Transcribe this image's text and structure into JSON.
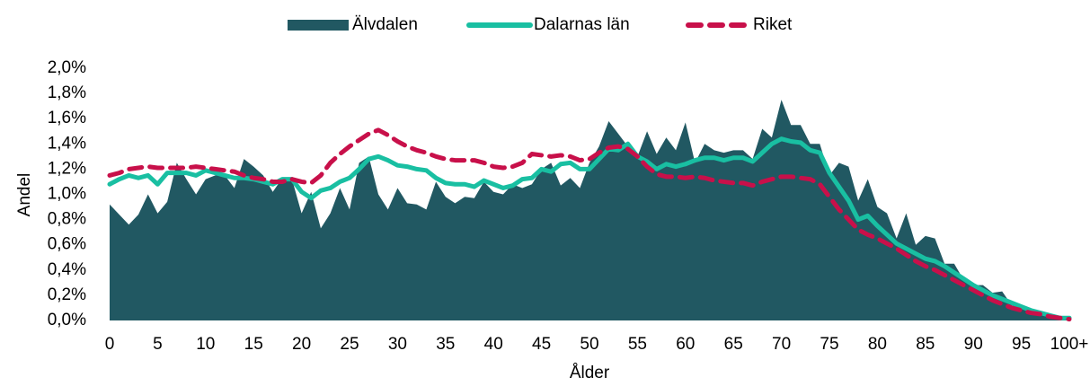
{
  "chart_data": {
    "type": "area_line",
    "x_label": "Ålder",
    "y_label": "Andel",
    "legend": "top",
    "categories": [
      "0",
      null,
      null,
      null,
      null,
      "5",
      null,
      null,
      null,
      null,
      "10",
      null,
      null,
      null,
      null,
      "15",
      null,
      null,
      null,
      null,
      "20",
      null,
      null,
      null,
      null,
      "25",
      null,
      null,
      null,
      null,
      "30",
      null,
      null,
      null,
      null,
      "35",
      null,
      null,
      null,
      null,
      "40",
      null,
      null,
      null,
      null,
      "45",
      null,
      null,
      null,
      null,
      "50",
      null,
      null,
      null,
      null,
      "55",
      null,
      null,
      null,
      null,
      "60",
      null,
      null,
      null,
      null,
      "65",
      null,
      null,
      null,
      null,
      "70",
      null,
      null,
      null,
      null,
      "75",
      null,
      null,
      null,
      null,
      "80",
      null,
      null,
      null,
      null,
      "85",
      null,
      null,
      null,
      null,
      "90",
      null,
      null,
      null,
      null,
      "95",
      null,
      null,
      null,
      null,
      "100+"
    ],
    "ylim": [
      0,
      2.0
    ],
    "yticks": [
      {
        "value": 0,
        "label": "0,0%"
      },
      {
        "value": 0.2,
        "label": "0,2%"
      },
      {
        "value": 0.4,
        "label": "0,4%"
      },
      {
        "value": 0.6,
        "label": "0,6%"
      },
      {
        "value": 0.8,
        "label": "0,8%"
      },
      {
        "value": 1.0,
        "label": "1,0%"
      },
      {
        "value": 1.2,
        "label": "1,2%"
      },
      {
        "value": 1.4,
        "label": "1,4%"
      },
      {
        "value": 1.6,
        "label": "1,6%"
      },
      {
        "value": 1.8,
        "label": "1,8%"
      },
      {
        "value": 2.0,
        "label": "2,0%"
      }
    ],
    "series": [
      {
        "name": "Älvdalen",
        "kind": "area",
        "color": "#215862",
        "values": [
          0.92,
          0.84,
          0.76,
          0.84,
          1.0,
          0.85,
          0.94,
          1.25,
          1.12,
          1.0,
          1.12,
          1.15,
          1.15,
          1.05,
          1.28,
          1.22,
          1.15,
          1.02,
          1.13,
          1.12,
          0.85,
          1.02,
          0.73,
          0.85,
          1.05,
          0.88,
          1.25,
          1.3,
          1.0,
          0.88,
          1.05,
          0.93,
          0.92,
          0.88,
          1.1,
          0.98,
          0.93,
          0.98,
          0.97,
          1.1,
          1.02,
          1.0,
          1.08,
          1.05,
          1.08,
          1.2,
          1.25,
          1.07,
          1.13,
          1.05,
          1.25,
          1.38,
          1.58,
          1.48,
          1.38,
          1.3,
          1.5,
          1.32,
          1.45,
          1.35,
          1.57,
          1.25,
          1.4,
          1.35,
          1.33,
          1.35,
          1.35,
          1.28,
          1.52,
          1.45,
          1.75,
          1.55,
          1.55,
          1.4,
          1.4,
          1.15,
          1.25,
          1.22,
          0.95,
          1.12,
          0.9,
          0.85,
          0.65,
          0.85,
          0.6,
          0.67,
          0.65,
          0.45,
          0.45,
          0.32,
          0.28,
          0.28,
          0.22,
          0.23,
          0.12,
          0.1,
          0.07,
          0.05,
          0.04,
          0.02,
          0.03
        ]
      },
      {
        "name": "Dalarnas län",
        "kind": "line",
        "color": "#19bfa2",
        "values": [
          1.08,
          1.12,
          1.15,
          1.13,
          1.15,
          1.08,
          1.17,
          1.17,
          1.17,
          1.15,
          1.19,
          1.17,
          1.15,
          1.13,
          1.13,
          1.12,
          1.1,
          1.08,
          1.12,
          1.12,
          1.02,
          0.97,
          1.03,
          1.05,
          1.1,
          1.13,
          1.2,
          1.28,
          1.3,
          1.27,
          1.23,
          1.22,
          1.2,
          1.19,
          1.13,
          1.09,
          1.08,
          1.08,
          1.06,
          1.11,
          1.08,
          1.05,
          1.07,
          1.12,
          1.13,
          1.2,
          1.18,
          1.24,
          1.25,
          1.2,
          1.2,
          1.28,
          1.36,
          1.35,
          1.4,
          1.3,
          1.26,
          1.2,
          1.24,
          1.22,
          1.24,
          1.27,
          1.29,
          1.29,
          1.27,
          1.29,
          1.29,
          1.26,
          1.33,
          1.4,
          1.44,
          1.42,
          1.41,
          1.35,
          1.33,
          1.17,
          1.06,
          0.95,
          0.8,
          0.83,
          0.75,
          0.68,
          0.61,
          0.57,
          0.53,
          0.49,
          0.47,
          0.43,
          0.38,
          0.33,
          0.28,
          0.24,
          0.2,
          0.17,
          0.14,
          0.11,
          0.08,
          0.06,
          0.04,
          0.02,
          0.02
        ]
      },
      {
        "name": "Riket",
        "kind": "dashed",
        "color": "#c8104a",
        "values": [
          1.15,
          1.17,
          1.2,
          1.21,
          1.22,
          1.21,
          1.21,
          1.21,
          1.21,
          1.22,
          1.21,
          1.2,
          1.19,
          1.18,
          1.15,
          1.13,
          1.12,
          1.1,
          1.1,
          1.12,
          1.1,
          1.09,
          1.15,
          1.25,
          1.32,
          1.38,
          1.43,
          1.48,
          1.51,
          1.47,
          1.42,
          1.38,
          1.35,
          1.33,
          1.3,
          1.28,
          1.27,
          1.27,
          1.27,
          1.25,
          1.22,
          1.21,
          1.22,
          1.25,
          1.32,
          1.31,
          1.3,
          1.31,
          1.3,
          1.27,
          1.28,
          1.33,
          1.37,
          1.38,
          1.36,
          1.3,
          1.22,
          1.16,
          1.14,
          1.14,
          1.13,
          1.14,
          1.13,
          1.11,
          1.1,
          1.09,
          1.09,
          1.07,
          1.1,
          1.12,
          1.14,
          1.14,
          1.13,
          1.12,
          1.08,
          0.98,
          0.88,
          0.8,
          0.72,
          0.68,
          0.65,
          0.61,
          0.57,
          0.52,
          0.47,
          0.43,
          0.4,
          0.36,
          0.32,
          0.28,
          0.24,
          0.2,
          0.16,
          0.13,
          0.1,
          0.08,
          0.06,
          0.05,
          0.03,
          0.02,
          0.01
        ]
      }
    ]
  }
}
